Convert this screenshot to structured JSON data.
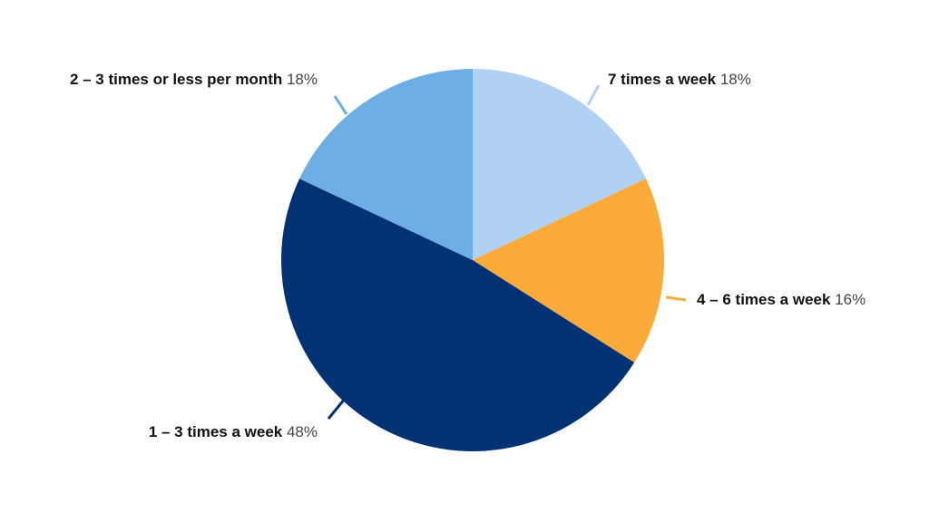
{
  "chart_data": {
    "type": "pie",
    "title": "",
    "slices": [
      {
        "label": "7 times a week",
        "value": 18,
        "value_label": "18%",
        "color": "#b0d1f1"
      },
      {
        "label": "4 – 6 times a week",
        "value": 16,
        "value_label": "16%",
        "color": "#fcab3b"
      },
      {
        "label": "1 – 3 times a week",
        "value": 48,
        "value_label": "48%",
        "color": "#003274"
      },
      {
        "label": "2 – 3 times or less per month",
        "value": 18,
        "value_label": "18%",
        "color": "#6daee4"
      }
    ],
    "start_angle_deg": 0,
    "direction": "clockwise",
    "legend": "none"
  }
}
